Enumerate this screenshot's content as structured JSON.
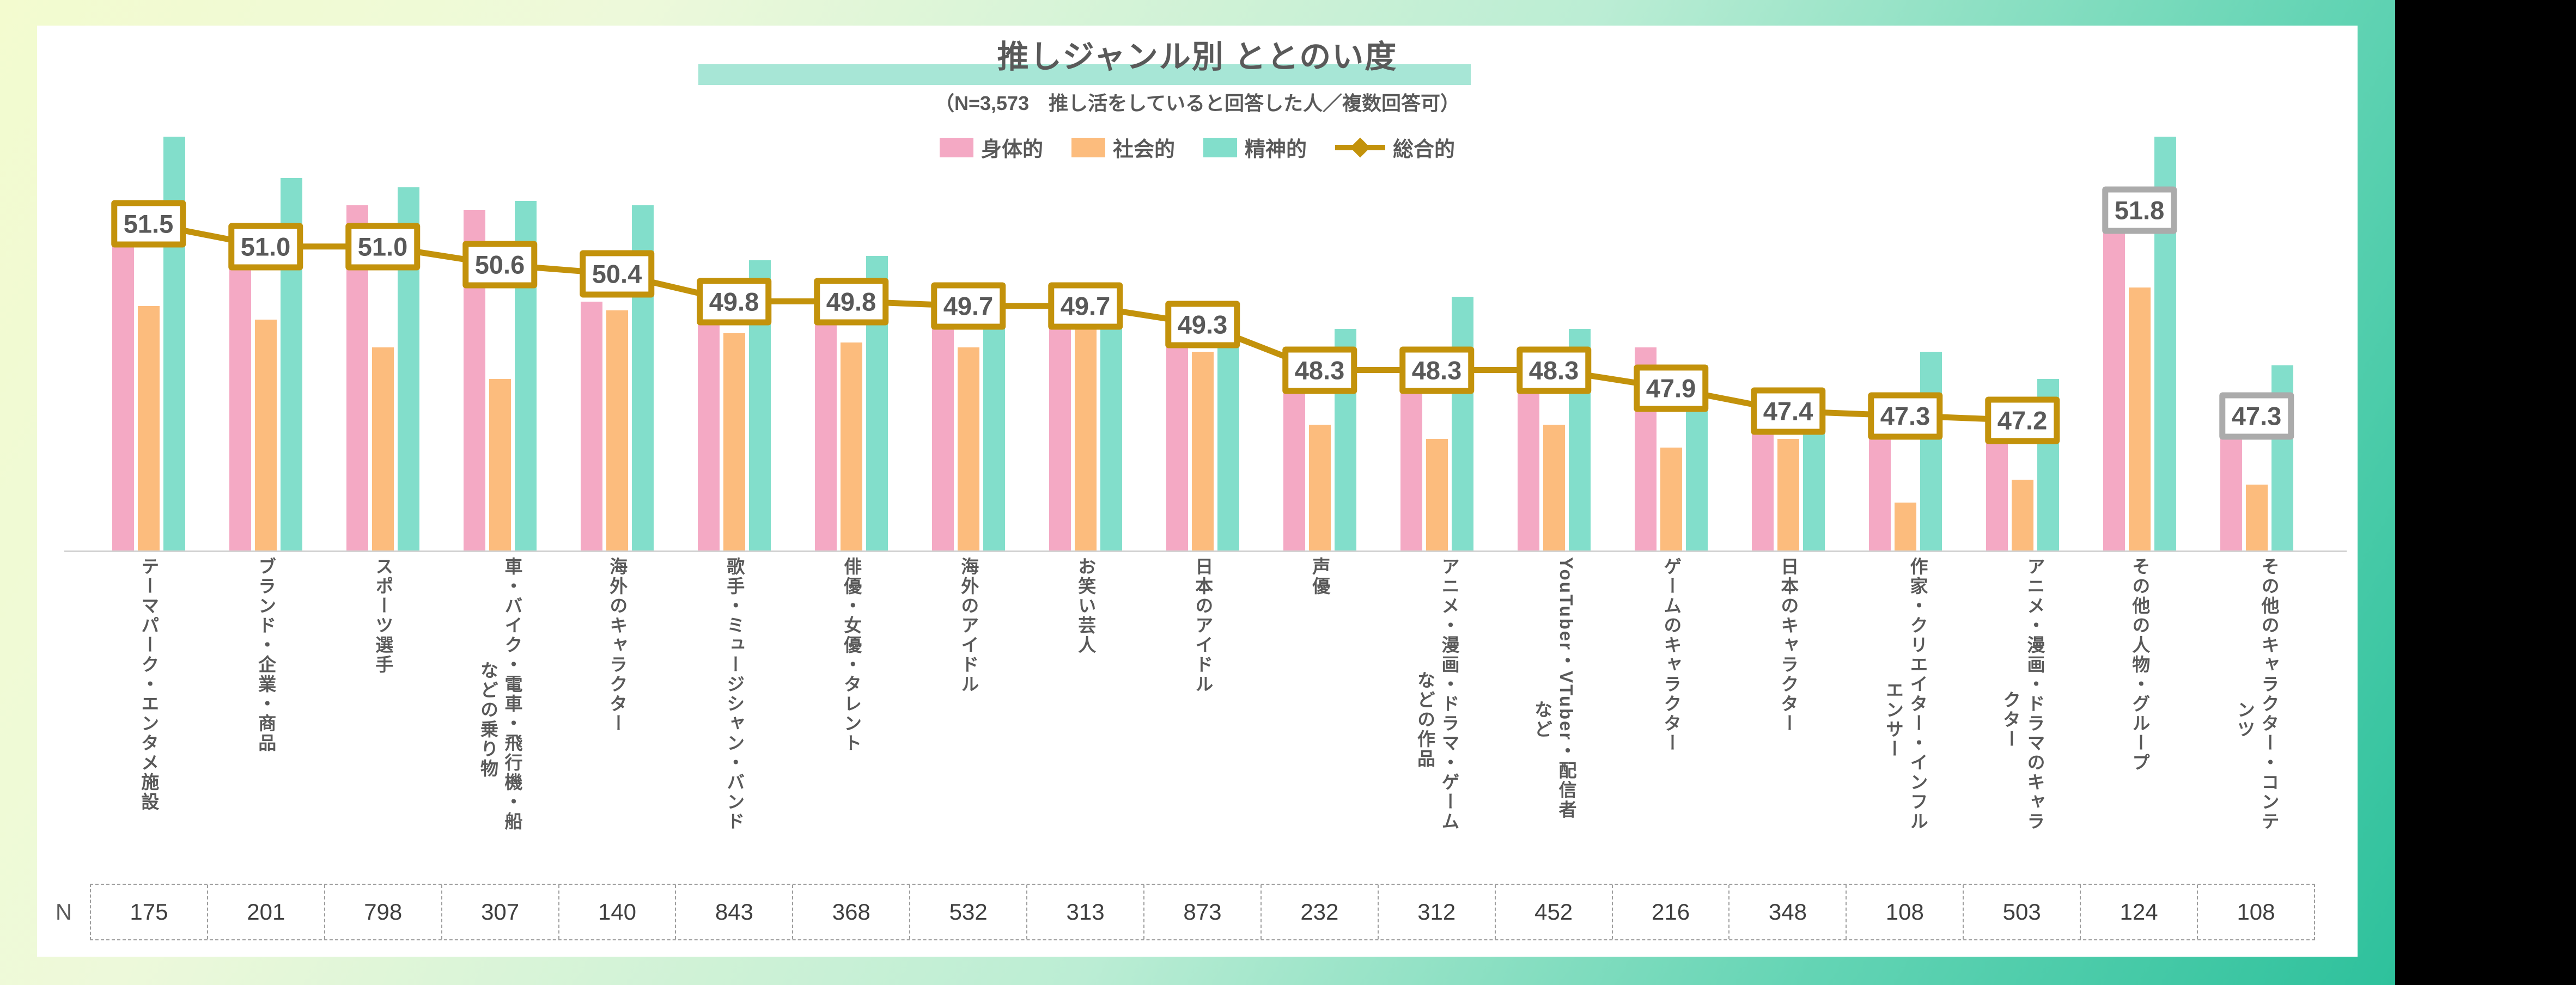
{
  "header": {
    "title": "推しジャンル別 ととのい度",
    "subtitle": "（N=3,573　推し活をしていると回答した人／複数回答可）"
  },
  "colors": {
    "physical": "#F4A9C4",
    "social": "#FCBC7D",
    "mental": "#82DECB",
    "overall_line": "#C3920B",
    "gray_box_border": "#ABABAB",
    "text": "#595959",
    "title_underline": "#A7E6D6",
    "axis": "#D2D2D2"
  },
  "legend": {
    "items": [
      {
        "label": "身体的",
        "type": "swatch",
        "color": "#F4A9C4"
      },
      {
        "label": "社会的",
        "type": "swatch",
        "color": "#FCBC7D"
      },
      {
        "label": "精神的",
        "type": "swatch",
        "color": "#82DECB"
      },
      {
        "label": "総合的",
        "type": "line",
        "color": "#C3920B"
      }
    ]
  },
  "n_row": {
    "label": "N",
    "values": [
      175,
      201,
      798,
      307,
      140,
      843,
      368,
      532,
      313,
      873,
      232,
      312,
      452,
      216,
      348,
      108,
      503,
      124,
      108
    ]
  },
  "chart_data": {
    "type": "bar",
    "title": "推しジャンル別 ととのい度",
    "xlabel": "",
    "ylabel": "",
    "ylim": [
      44.3,
      54.2
    ],
    "grid": false,
    "legend_position": "top",
    "categories": [
      "テーマパーク・エンタメ施設",
      "ブランド・企業・商品",
      "スポーツ選手",
      "車・バイク・電車・飛行機・船\nなどの乗り物",
      "海外のキャラクター",
      "歌手・ミュージシャン・バンド",
      "俳優・女優・タレント",
      "海外のアイドル",
      "お笑い芸人",
      "日本のアイドル",
      "声優",
      "アニメ・漫画・ドラマ・ゲーム\nなどの作品",
      "YouTuber・VTuber・配信者\nなど",
      "ゲームのキャラクター",
      "日本のキャラクター",
      "作家・クリエイター・インフル\nエンサー",
      "アニメ・漫画・ドラマのキャラ\nクター",
      "その他の人物・グループ",
      "その他のキャラクター・コンテ\nンツ"
    ],
    "series": [
      {
        "name": "身体的",
        "color": "#F4A9C4",
        "values": [
          51.6,
          51.2,
          51.9,
          51.8,
          49.8,
          49.6,
          49.7,
          50.1,
          49.7,
          49.5,
          48.6,
          48.2,
          48.7,
          48.8,
          47.9,
          47.8,
          47.6,
          51.9,
          47.7
        ]
      },
      {
        "name": "社会的",
        "color": "#FCBC7D",
        "values": [
          49.7,
          49.4,
          48.8,
          48.1,
          49.6,
          49.1,
          48.9,
          48.8,
          49.4,
          48.7,
          47.1,
          46.8,
          47.1,
          46.6,
          46.8,
          45.4,
          45.9,
          50.1,
          45.8
        ]
      },
      {
        "name": "精神的",
        "color": "#82DECB",
        "values": [
          53.4,
          52.5,
          52.3,
          52.0,
          51.9,
          50.7,
          50.8,
          50.2,
          50.0,
          49.8,
          49.2,
          49.9,
          49.2,
          48.4,
          47.7,
          48.7,
          48.1,
          53.4,
          48.4
        ]
      }
    ],
    "overall": {
      "name": "総合的",
      "color": "#C3920B",
      "values": [
        51.5,
        51.0,
        51.0,
        50.6,
        50.4,
        49.8,
        49.8,
        49.7,
        49.7,
        49.3,
        48.3,
        48.3,
        48.3,
        47.9,
        47.4,
        47.3,
        47.2,
        51.8,
        47.3
      ],
      "line_connects_first": 17,
      "gray_label_indices": [
        17,
        18
      ]
    }
  }
}
